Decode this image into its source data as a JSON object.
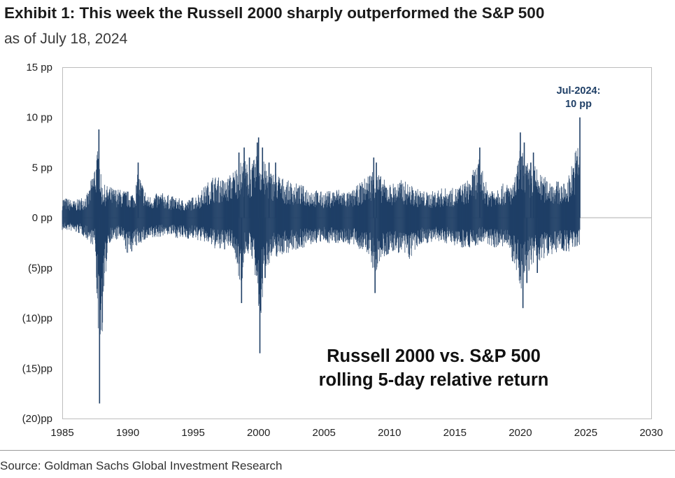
{
  "header": {
    "title": "Exhibit 1: This week the Russell 2000 sharply outperformed the S&P 500",
    "subtitle": "as of July 18, 2024"
  },
  "annotations": {
    "callout_line1": "Jul-2024:",
    "callout_line2": "10 pp",
    "inset_line1": "Russell 2000 vs. S&P 500",
    "inset_line2": "rolling 5-day relative return"
  },
  "footer": {
    "source": "Source: Goldman Sachs Global Investment Research"
  },
  "colors": {
    "series": "#1f3f66",
    "zero_line": "#bdbdbd",
    "frame": "#bdbdbd"
  },
  "chart_data": {
    "type": "bar",
    "title": "Exhibit 1: This week the Russell 2000 sharply outperformed the S&P 500",
    "subtitle": "as of July 18, 2024",
    "xlabel": "",
    "ylabel": "",
    "xlim": [
      1985,
      2030
    ],
    "ylim": [
      -20,
      15
    ],
    "x_ticks": [
      1985,
      1990,
      1995,
      2000,
      2005,
      2010,
      2015,
      2020,
      2025,
      2030
    ],
    "x_tick_labels": [
      "1985",
      "1990",
      "1995",
      "2000",
      "2005",
      "2010",
      "2015",
      "2020",
      "2025",
      "2030"
    ],
    "y_ticks": [
      15,
      10,
      5,
      0,
      -5,
      -10,
      -15,
      -20
    ],
    "y_tick_labels": [
      "15 pp",
      "10 pp",
      "5 pp",
      "0 pp",
      "(5)pp",
      "(10)pp",
      "(15)pp",
      "(20)pp"
    ],
    "grid": false,
    "legend": "none",
    "series": [
      {
        "values_note": "dense daily series; representative envelope points below",
        "x": [
          1985.0,
          1985.5,
          1986.0,
          1986.5,
          1987.0,
          1987.5,
          1987.8,
          1987.85,
          1988.0,
          1988.5,
          1989.0,
          1989.5,
          1990.0,
          1990.5,
          1990.8,
          1991.0,
          1991.5,
          1992.0,
          1992.5,
          1993.0,
          1993.5,
          1994.0,
          1994.5,
          1995.0,
          1995.5,
          1996.0,
          1996.5,
          1997.0,
          1997.5,
          1998.0,
          1998.5,
          1998.7,
          1998.9,
          1999.0,
          1999.3,
          1999.6,
          1999.9,
          2000.0,
          2000.1,
          2000.3,
          2000.5,
          2000.8,
          2001.0,
          2001.3,
          2001.6,
          2002.0,
          2002.5,
          2003.0,
          2003.5,
          2004.0,
          2004.5,
          2005.0,
          2005.5,
          2006.0,
          2006.5,
          2007.0,
          2007.5,
          2008.0,
          2008.5,
          2008.8,
          2008.9,
          2009.0,
          2009.3,
          2009.6,
          2010.0,
          2010.5,
          2011.0,
          2011.5,
          2012.0,
          2012.5,
          2013.0,
          2013.5,
          2014.0,
          2014.5,
          2015.0,
          2015.5,
          2016.0,
          2016.5,
          2016.9,
          2017.0,
          2017.5,
          2018.0,
          2018.5,
          2019.0,
          2019.5,
          2020.0,
          2020.2,
          2020.3,
          2020.5,
          2020.8,
          2021.0,
          2021.3,
          2021.6,
          2022.0,
          2022.5,
          2023.0,
          2023.5,
          2024.0,
          2024.3,
          2024.55
        ],
        "values": [
          2.5,
          -1.5,
          2.0,
          -2.0,
          3.0,
          -3.5,
          8.8,
          -18.5,
          4.0,
          -3.0,
          3.5,
          -2.5,
          -4.5,
          3.0,
          5.5,
          -3.0,
          2.5,
          -2.5,
          3.0,
          -2.0,
          2.5,
          -2.5,
          2.0,
          -2.5,
          3.0,
          -3.0,
          5.0,
          -4.0,
          4.5,
          -3.5,
          6.5,
          -8.5,
          7.0,
          -4.0,
          6.0,
          -5.0,
          7.5,
          8.0,
          -13.5,
          7.0,
          -6.0,
          5.5,
          -5.0,
          5.5,
          -4.5,
          4.5,
          -4.0,
          4.0,
          -3.5,
          3.5,
          -3.0,
          3.0,
          -3.0,
          3.5,
          -3.0,
          3.0,
          -3.5,
          4.5,
          -4.5,
          6.0,
          -7.5,
          5.5,
          -5.0,
          4.5,
          4.0,
          -4.0,
          4.5,
          -5.0,
          3.5,
          -3.0,
          3.0,
          -3.0,
          3.5,
          -3.0,
          3.5,
          -3.5,
          4.5,
          -3.5,
          7.0,
          -3.0,
          3.5,
          -3.5,
          4.0,
          -3.5,
          4.0,
          8.5,
          -9.0,
          7.5,
          -6.5,
          5.5,
          6.5,
          -5.5,
          5.0,
          -4.5,
          4.5,
          -4.0,
          4.0,
          -4.0,
          -3.5,
          10.0
        ]
      }
    ]
  }
}
